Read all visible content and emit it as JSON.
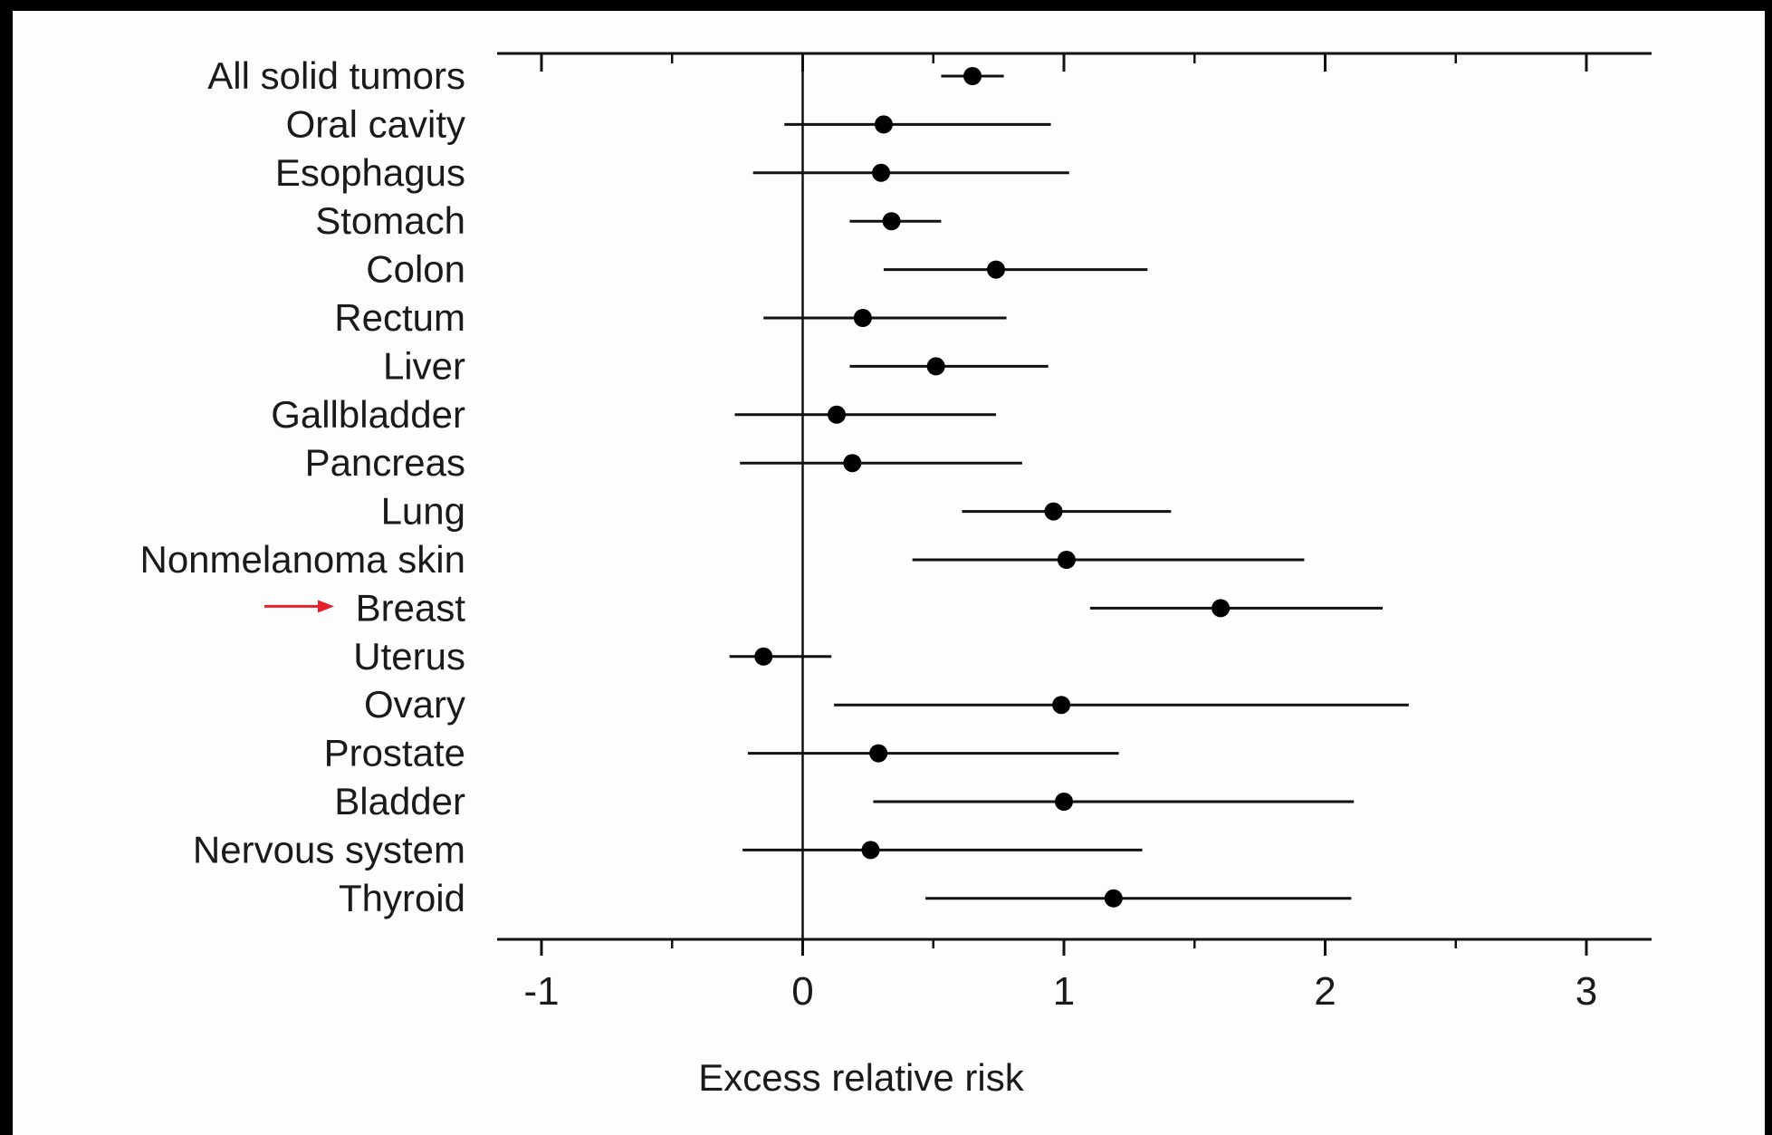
{
  "chart_data": {
    "type": "forest",
    "xlabel": "Excess relative risk",
    "xlim": [
      -1.2,
      3.2
    ],
    "xticks": [
      -1,
      0,
      1,
      2,
      3
    ],
    "xticks_minor": [
      -0.5,
      0.5,
      1.5,
      2.5
    ],
    "reference_line_x": 0,
    "highlighted_category": "Breast",
    "highlight_color": "#e8202a",
    "point_color": "#000000",
    "rows": [
      {
        "label": "All solid tumors",
        "estimate": 0.65,
        "lower": 0.53,
        "upper": 0.77
      },
      {
        "label": "Oral cavity",
        "estimate": 0.31,
        "lower": -0.07,
        "upper": 0.95
      },
      {
        "label": "Esophagus",
        "estimate": 0.3,
        "lower": -0.19,
        "upper": 1.02
      },
      {
        "label": "Stomach",
        "estimate": 0.34,
        "lower": 0.18,
        "upper": 0.53
      },
      {
        "label": "Colon",
        "estimate": 0.74,
        "lower": 0.31,
        "upper": 1.32
      },
      {
        "label": "Rectum",
        "estimate": 0.23,
        "lower": -0.15,
        "upper": 0.78
      },
      {
        "label": "Liver",
        "estimate": 0.51,
        "lower": 0.18,
        "upper": 0.94
      },
      {
        "label": "Gallbladder",
        "estimate": 0.13,
        "lower": -0.26,
        "upper": 0.74
      },
      {
        "label": "Pancreas",
        "estimate": 0.19,
        "lower": -0.24,
        "upper": 0.84
      },
      {
        "label": "Lung",
        "estimate": 0.96,
        "lower": 0.61,
        "upper": 1.41
      },
      {
        "label": "Nonmelanoma skin",
        "estimate": 1.01,
        "lower": 0.42,
        "upper": 1.92
      },
      {
        "label": "Breast",
        "estimate": 1.6,
        "lower": 1.1,
        "upper": 2.22
      },
      {
        "label": "Uterus",
        "estimate": -0.15,
        "lower": -0.28,
        "upper": 0.11
      },
      {
        "label": "Ovary",
        "estimate": 0.99,
        "lower": 0.12,
        "upper": 2.32
      },
      {
        "label": "Prostate",
        "estimate": 0.29,
        "lower": -0.21,
        "upper": 1.21
      },
      {
        "label": "Bladder",
        "estimate": 1.0,
        "lower": 0.27,
        "upper": 2.11
      },
      {
        "label": "Nervous system",
        "estimate": 0.26,
        "lower": -0.23,
        "upper": 1.3
      },
      {
        "label": "Thyroid",
        "estimate": 1.19,
        "lower": 0.47,
        "upper": 2.1
      }
    ]
  }
}
